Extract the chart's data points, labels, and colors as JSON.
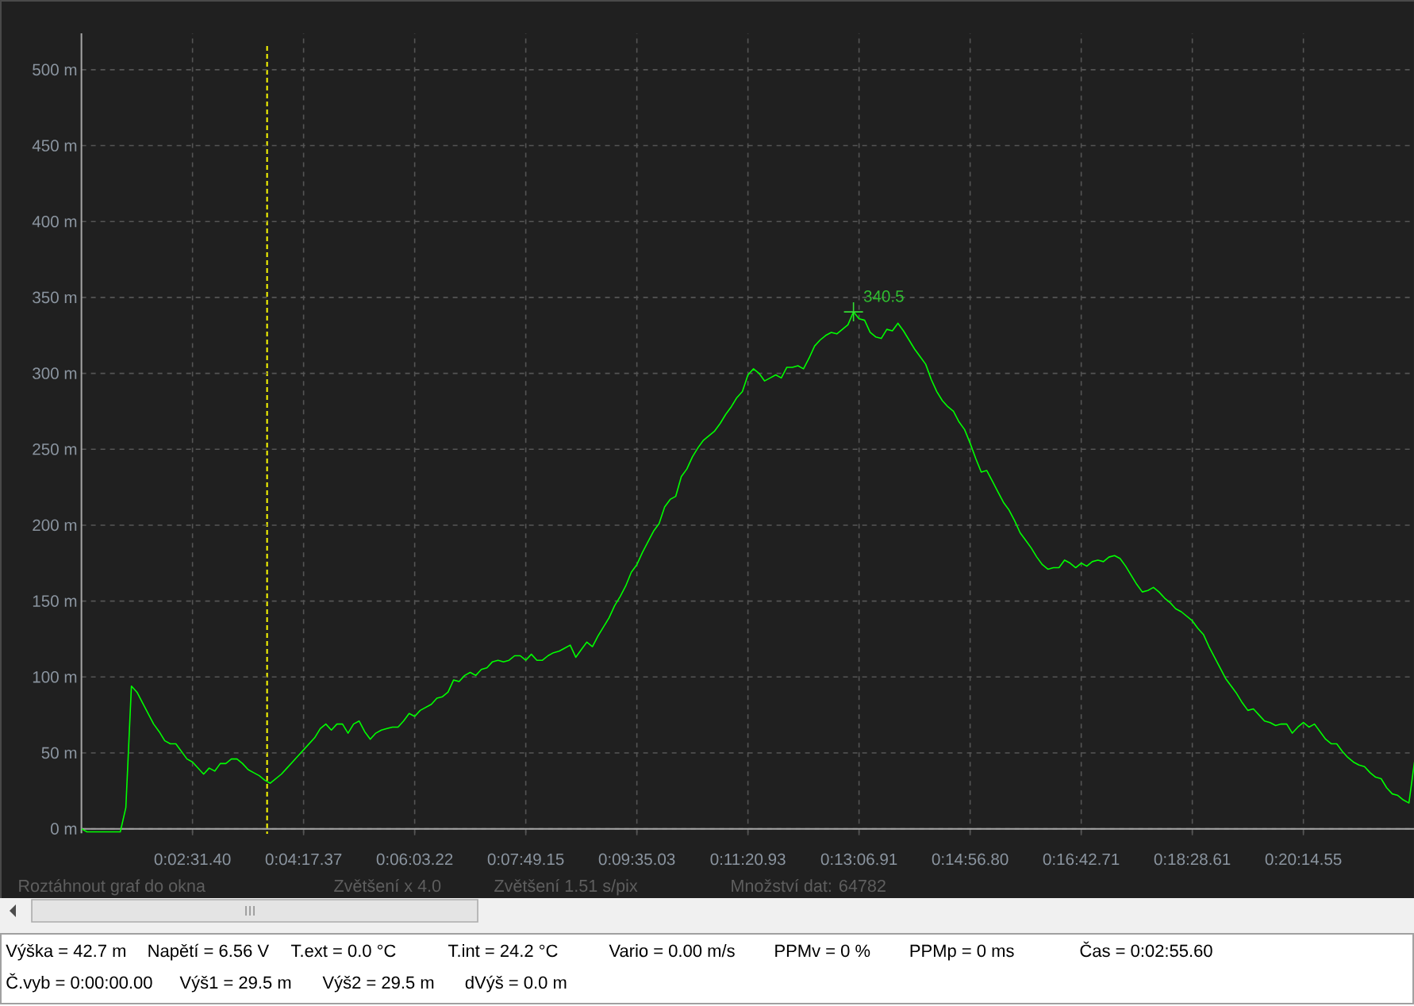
{
  "chart_data": {
    "type": "line",
    "color": "#00ff00",
    "grid": true,
    "ylim": [
      -3,
      524
    ],
    "yticks": [
      {
        "value": 0,
        "label": "0 m"
      },
      {
        "value": 50,
        "label": "50 m"
      },
      {
        "value": 100,
        "label": "100 m"
      },
      {
        "value": 150,
        "label": "150 m"
      },
      {
        "value": 200,
        "label": "200 m"
      },
      {
        "value": 250,
        "label": "250 m"
      },
      {
        "value": 300,
        "label": "300 m"
      },
      {
        "value": 350,
        "label": "350 m"
      },
      {
        "value": 400,
        "label": "400 m"
      },
      {
        "value": 450,
        "label": "450 m"
      },
      {
        "value": 500,
        "label": "500 m"
      }
    ],
    "categories": [
      null,
      null,
      null,
      null,
      null,
      null,
      null,
      null,
      null,
      null,
      null,
      null,
      null,
      null,
      null,
      null,
      null,
      null,
      null,
      null,
      "0:02:31.40",
      null,
      null,
      null,
      null,
      null,
      null,
      null,
      null,
      null,
      null,
      null,
      null,
      null,
      null,
      null,
      null,
      null,
      null,
      null,
      "0:04:17.37",
      null,
      null,
      null,
      null,
      null,
      null,
      null,
      null,
      null,
      null,
      null,
      null,
      null,
      null,
      null,
      null,
      null,
      null,
      null,
      "0:06:03.22",
      null,
      null,
      null,
      null,
      null,
      null,
      null,
      null,
      null,
      null,
      null,
      null,
      null,
      null,
      null,
      null,
      null,
      null,
      null,
      "0:07:49.15",
      null,
      null,
      null,
      null,
      null,
      null,
      null,
      null,
      null,
      null,
      null,
      null,
      null,
      null,
      null,
      null,
      null,
      null,
      null,
      "0:09:35.03",
      null,
      null,
      null,
      null,
      null,
      null,
      null,
      null,
      null,
      null,
      null,
      null,
      null,
      null,
      null,
      null,
      null,
      null,
      null,
      "0:11:20.93",
      null,
      null,
      null,
      null,
      null,
      null,
      null,
      null,
      null,
      null,
      null,
      null,
      null,
      null,
      null,
      null,
      null,
      null,
      null,
      "0:13:06.91",
      null,
      null,
      null,
      null,
      null,
      null,
      null,
      null,
      null,
      null,
      null,
      null,
      null,
      null,
      null,
      null,
      null,
      null,
      null,
      "0:14:56.80",
      null,
      null,
      null,
      null,
      null,
      null,
      null,
      null,
      null,
      null,
      null,
      null,
      null,
      null,
      null,
      null,
      null,
      null,
      null,
      "0:16:42.71",
      null,
      null,
      null,
      null,
      null,
      null,
      null,
      null,
      null,
      null,
      null,
      null,
      null,
      null,
      null,
      null,
      null,
      null,
      null,
      "0:18:28.61",
      null,
      null,
      null,
      null,
      null,
      null,
      null,
      null,
      null,
      null,
      null,
      null,
      null,
      null,
      null,
      null,
      null,
      null,
      null,
      "0:20:14.55",
      null,
      null,
      null,
      null,
      null,
      null,
      null,
      null,
      null,
      null,
      null,
      null,
      null,
      null,
      null,
      null,
      null,
      null,
      null,
      null
    ],
    "values": [
      0,
      -2,
      -2,
      -2,
      -2,
      -2,
      -2,
      -2,
      14,
      94,
      90,
      83,
      76,
      69,
      64,
      58,
      56,
      56,
      51,
      46,
      44,
      40,
      36,
      40,
      38,
      43,
      43,
      46,
      46,
      43,
      39,
      37,
      35,
      32,
      30,
      33,
      36,
      40,
      44,
      48,
      52,
      56,
      60,
      66,
      69,
      65,
      69,
      69,
      63,
      69,
      71,
      64,
      59,
      63,
      65,
      66,
      67,
      67,
      71,
      76,
      74,
      78,
      80,
      82,
      86,
      87,
      90,
      98,
      97,
      101,
      103,
      101,
      105,
      106,
      110,
      111,
      110,
      111,
      114,
      114,
      111,
      115,
      111,
      111,
      114,
      116,
      117,
      119,
      121,
      113,
      118,
      123,
      120,
      127,
      133,
      139,
      147,
      153,
      160,
      169,
      174,
      182,
      189,
      196,
      201,
      212,
      217,
      219,
      232,
      237,
      245,
      251,
      256,
      259,
      262,
      267,
      273,
      278,
      284,
      288,
      299,
      303,
      300,
      295,
      297,
      299,
      297,
      304,
      304,
      305,
      303,
      310,
      318,
      322,
      325,
      327,
      326,
      329,
      332,
      340.5,
      336,
      335,
      327,
      324,
      323,
      329,
      328,
      333,
      328,
      322,
      316,
      311,
      306,
      296,
      288,
      282,
      278,
      275,
      268,
      263,
      254,
      244,
      235,
      236,
      229,
      222,
      215,
      210,
      203,
      195,
      190,
      185,
      179,
      174,
      171,
      172,
      172,
      177,
      175,
      172,
      175,
      173,
      176,
      177,
      176,
      179,
      180,
      178,
      173,
      167,
      161,
      156,
      157,
      159,
      156,
      152,
      149,
      145,
      143,
      140,
      137,
      132,
      128,
      120,
      113,
      106,
      99,
      94,
      89,
      83,
      78,
      79,
      75,
      71,
      70,
      68,
      69,
      69,
      63,
      67,
      70,
      67,
      69,
      64,
      59,
      56,
      56,
      51,
      47,
      44,
      42,
      41,
      37,
      34,
      33,
      27,
      23,
      22,
      19,
      17,
      44
    ],
    "value_labels": [
      null,
      null,
      null,
      null,
      null,
      null,
      null,
      null,
      null,
      null,
      null,
      null,
      null,
      null,
      null,
      null,
      null,
      null,
      null,
      null,
      null,
      null,
      null,
      null,
      null,
      null,
      null,
      null,
      null,
      null,
      null,
      null,
      null,
      null,
      null,
      null,
      null,
      null,
      null,
      null,
      null,
      null,
      null,
      null,
      null,
      null,
      null,
      null,
      null,
      null,
      null,
      null,
      null,
      null,
      null,
      null,
      null,
      null,
      null,
      null,
      null,
      null,
      null,
      null,
      null,
      null,
      null,
      null,
      null,
      null,
      null,
      null,
      null,
      null,
      null,
      null,
      null,
      null,
      null,
      null,
      null,
      null,
      null,
      null,
      null,
      null,
      null,
      null,
      null,
      null,
      null,
      null,
      null,
      null,
      null,
      null,
      null,
      null,
      null,
      null,
      null,
      null,
      null,
      null,
      null,
      null,
      null,
      null,
      null,
      null,
      null,
      null,
      null,
      null,
      null,
      null,
      null,
      null,
      null,
      null,
      null,
      null,
      null,
      null,
      null,
      null,
      null,
      null,
      null,
      null,
      null,
      null,
      null,
      null,
      null,
      null,
      null,
      null,
      null,
      "340.5",
      null,
      null,
      null,
      null,
      null,
      null,
      null,
      null,
      null,
      null,
      null,
      null,
      null,
      null,
      null,
      null,
      null,
      null,
      null,
      null,
      null,
      null,
      null,
      null,
      null,
      null,
      null,
      null,
      null,
      null,
      null,
      null,
      null,
      null,
      null,
      null,
      null,
      null,
      null,
      null,
      null,
      null,
      null,
      null,
      null,
      null,
      null,
      null,
      null,
      null,
      null,
      null,
      null,
      null,
      null,
      null,
      null,
      null,
      null,
      null,
      null,
      null,
      null,
      null,
      null,
      null,
      null,
      null,
      null,
      null,
      null,
      null,
      null,
      null,
      null,
      null,
      null,
      null,
      null,
      null,
      null,
      null,
      null,
      null,
      null,
      null,
      null,
      null,
      null,
      null,
      null,
      null,
      null,
      null,
      null,
      null,
      null,
      null,
      null,
      null,
      null
    ],
    "annotations": [
      "Roztáhnout graf do okna",
      "Zvětšení x 4.0",
      "Zvětšení 1.51 s/pix",
      "Množství dat: 64782",
      "Výška = 42.7 m",
      "Napětí = 6.56 V",
      "T.ext = 0.0 °C",
      "T.int = 24.2 °C",
      "Vario = 0.00 m/s",
      "PPMv = 0 %",
      "PPMp = 0 ms",
      "Čas = 0:02:55.60",
      "Č.vyb = 0:00:00.00",
      "Výš1 = 29.5 m",
      "Výš2 = 29.5 m",
      "dVýš = 0.0 m"
    ]
  }
}
